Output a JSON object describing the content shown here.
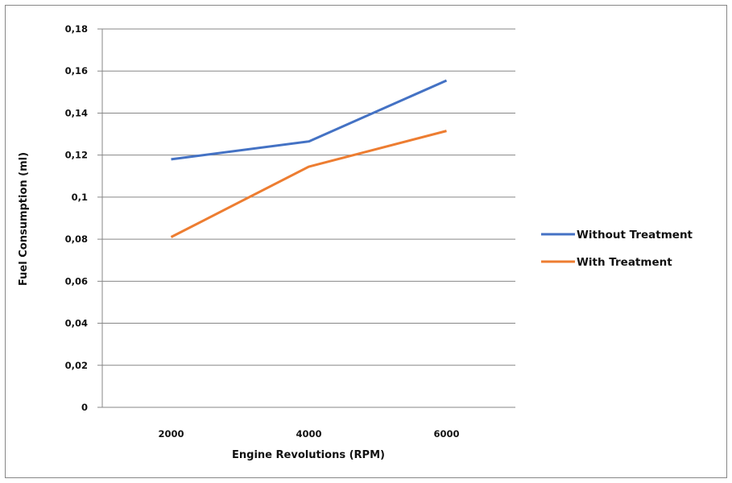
{
  "chart_data": {
    "type": "line",
    "xlabel": "Engine Revolutions (RPM)",
    "ylabel": "Fuel Consumption (ml)",
    "categories": [
      "2000",
      "4000",
      "6000"
    ],
    "ylim": [
      0,
      0.18
    ],
    "yticks": [
      "0",
      "0,02",
      "0,04",
      "0,06",
      "0,08",
      "0,1",
      "0,12",
      "0,14",
      "0,16",
      "0,18"
    ],
    "grid": true,
    "legend_position": "right",
    "series": [
      {
        "name": "Without Treatment",
        "color": "#4472c4",
        "values": [
          0.118,
          0.1265,
          0.1555
        ]
      },
      {
        "name": "With Treatment",
        "color": "#ed7d31",
        "values": [
          0.081,
          0.1145,
          0.1315
        ]
      }
    ]
  }
}
